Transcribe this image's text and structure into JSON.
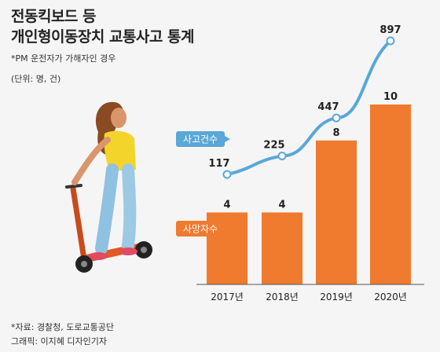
{
  "title_lines": [
    "전동킥보드 등",
    "개인형이동장치 교통사고 통계"
  ],
  "note": "*PM 운전자가 가해자인 경우",
  "unit": "(단위: 명, 건)",
  "source": "*자료: 경찰청, 도로교통공단",
  "credit": "그래픽: 이지혜 디자인기자",
  "colors": {
    "bar": "#f07a2e",
    "line": "#5aa7d8",
    "axis": "#555555",
    "text": "#222222"
  },
  "chart_data": {
    "type": "bar+line",
    "categories": [
      "2017년",
      "2018년",
      "2019년",
      "2020년"
    ],
    "series": [
      {
        "name": "사망자수",
        "type": "bar",
        "values": [
          4,
          4,
          8,
          10
        ]
      },
      {
        "name": "사고건수",
        "type": "line",
        "values": [
          117,
          225,
          447,
          897
        ]
      }
    ],
    "bar_ylim": [
      0,
      10
    ],
    "line_ylim": [
      0,
      897
    ],
    "grid": false,
    "legend": "inline"
  }
}
